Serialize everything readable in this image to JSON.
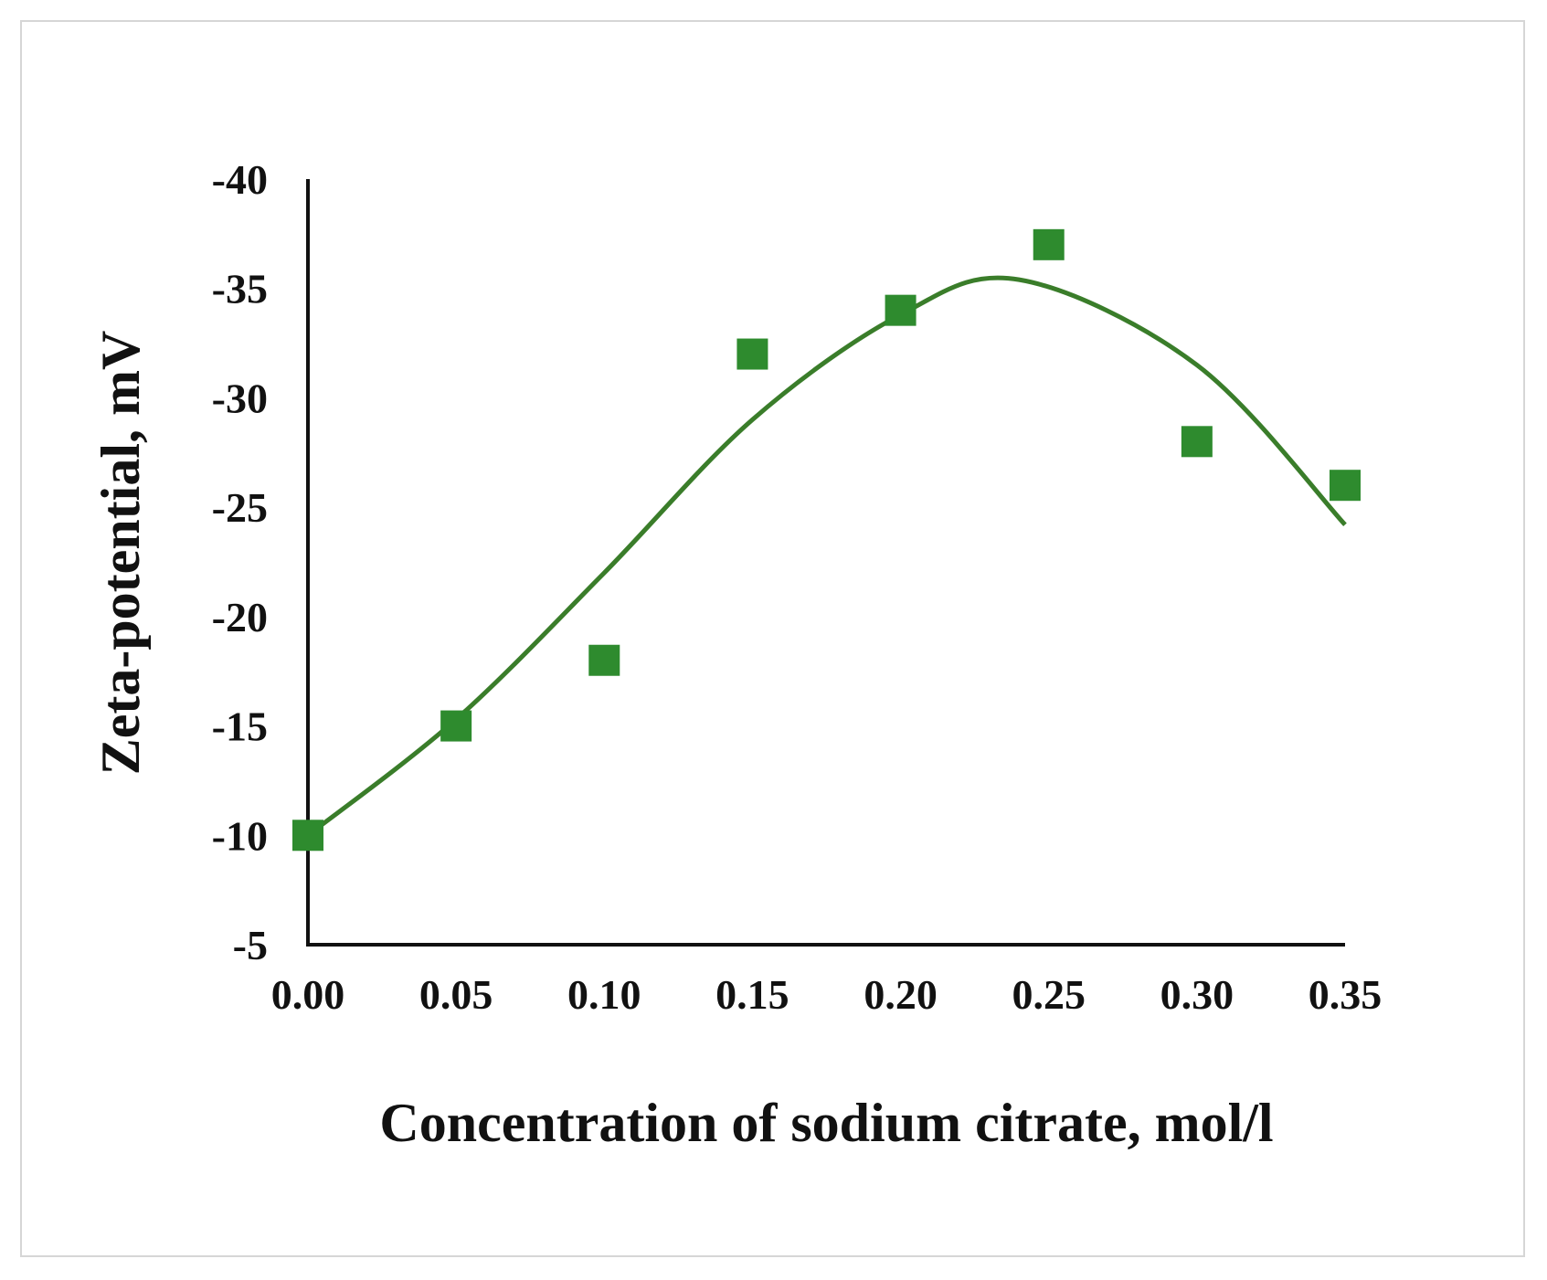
{
  "chart_data": {
    "type": "scatter",
    "title": "",
    "xlabel": "Concentration of sodium citrate, mol/l",
    "ylabel": "Zeta-potential, mV",
    "xlim": [
      0.0,
      0.35
    ],
    "ylim": [
      -5,
      -40
    ],
    "x_ticks": [
      "0.00",
      "0.05",
      "0.10",
      "0.15",
      "0.20",
      "0.25",
      "0.30",
      "0.35"
    ],
    "y_ticks": [
      "-40",
      "-35",
      "-30",
      "-25",
      "-20",
      "-15",
      "-10",
      "-5"
    ],
    "grid": false,
    "legend": "none",
    "colors": {
      "marker": "#2e8b2e",
      "trendline": "#3a7d2a",
      "axis": "#111111"
    },
    "series": [
      {
        "marker": "square",
        "x": [
          0.0,
          0.05,
          0.1,
          0.15,
          0.2,
          0.25,
          0.3,
          0.35
        ],
        "y": [
          -10,
          -15,
          -18,
          -32,
          -34,
          -37,
          -28,
          -26
        ]
      }
    ],
    "trendline": {
      "type": "polynomial",
      "x": [
        0.0,
        0.05,
        0.1,
        0.15,
        0.2,
        0.24,
        0.3,
        0.35
      ],
      "y": [
        -10,
        -15.3,
        -22,
        -29,
        -33.8,
        -35.4,
        -31.5,
        -24.2
      ]
    }
  }
}
